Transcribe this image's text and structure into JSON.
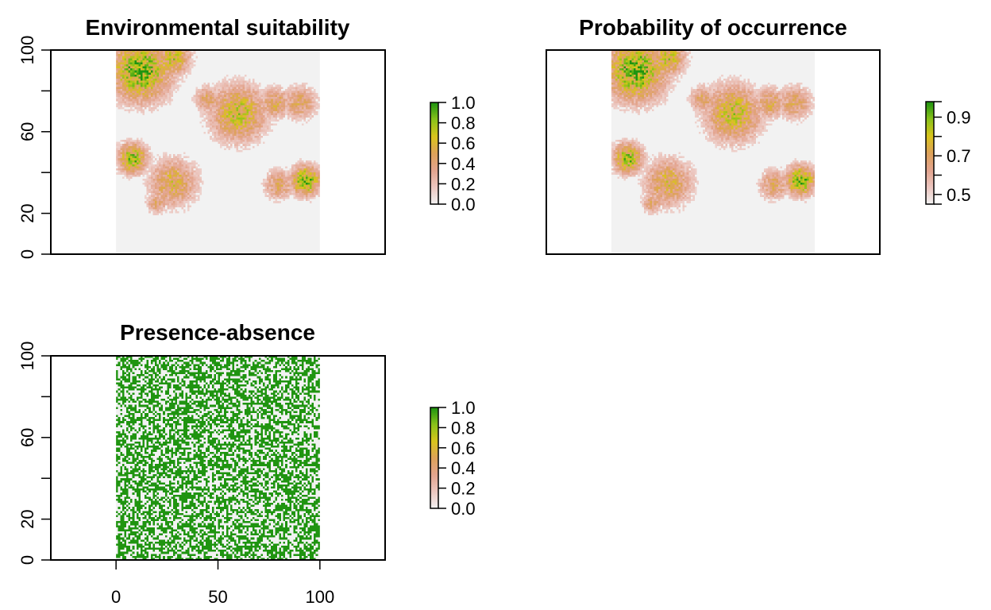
{
  "chart_data": [
    {
      "type": "heatmap",
      "title": "Environmental suitability",
      "xlim": [
        -32,
        132
      ],
      "ylim": [
        0,
        100
      ],
      "extent": {
        "x": [
          0,
          100
        ],
        "y": [
          0,
          100
        ]
      },
      "yticks": [
        0,
        20,
        60,
        100
      ],
      "ytick_labels": [
        "0",
        "20",
        "60",
        "100"
      ],
      "yminor_ticks": [
        40,
        80
      ],
      "xticks": [],
      "palette": [
        "#f2f2f2",
        "#ecc7c0",
        "#e3a48f",
        "#dea25a",
        "#d9c41c",
        "#8ac21a",
        "#1f9410"
      ],
      "legend": {
        "ticks": [
          0.0,
          0.2,
          0.4,
          0.6,
          0.8,
          1.0
        ],
        "labels": [
          "0.0",
          "0.2",
          "0.4",
          "0.6",
          "0.8",
          "1.0"
        ],
        "range": [
          0,
          1
        ]
      },
      "hotspots": [
        {
          "x": 12,
          "y": 90,
          "r": 14,
          "v": 0.95
        },
        {
          "x": 28,
          "y": 96,
          "r": 8,
          "v": 0.7
        },
        {
          "x": 45,
          "y": 76,
          "r": 6,
          "v": 0.5
        },
        {
          "x": 60,
          "y": 69,
          "r": 13,
          "v": 0.72
        },
        {
          "x": 78,
          "y": 74,
          "r": 7,
          "v": 0.55
        },
        {
          "x": 90,
          "y": 74,
          "r": 8,
          "v": 0.5
        },
        {
          "x": 8,
          "y": 47,
          "r": 7,
          "v": 0.85
        },
        {
          "x": 28,
          "y": 35,
          "r": 11,
          "v": 0.6
        },
        {
          "x": 20,
          "y": 25,
          "r": 5,
          "v": 0.45
        },
        {
          "x": 93,
          "y": 36,
          "r": 7,
          "v": 0.92
        },
        {
          "x": 80,
          "y": 34,
          "r": 7,
          "v": 0.5
        }
      ]
    },
    {
      "type": "heatmap",
      "title": "Probability of occurrence",
      "xlim": [
        -32,
        132
      ],
      "ylim": [
        0,
        100
      ],
      "extent": {
        "x": [
          0,
          100
        ],
        "y": [
          0,
          100
        ]
      },
      "xticks": [],
      "yticks": [],
      "legend": {
        "ticks": [
          0.45,
          0.5,
          0.6,
          0.7,
          0.8,
          0.9,
          0.98
        ],
        "labels": [
          "0.5",
          "0.7",
          "0.9"
        ],
        "label_values": [
          0.5,
          0.7,
          0.9
        ],
        "range": [
          0.45,
          0.98
        ]
      }
    },
    {
      "type": "heatmap",
      "title": "Presence-absence",
      "xlim": [
        -32,
        132
      ],
      "ylim": [
        0,
        100
      ],
      "extent": {
        "x": [
          0,
          100
        ],
        "y": [
          0,
          100
        ]
      },
      "yticks": [
        0,
        20,
        60,
        100
      ],
      "ytick_labels": [
        "0",
        "20",
        "60",
        "100"
      ],
      "yminor_ticks": [
        40,
        80
      ],
      "xticks": [
        0,
        50,
        100
      ],
      "xtick_labels": [
        "0",
        "50",
        "100"
      ],
      "xminor_ticks": [],
      "presence_fraction": 0.55,
      "legend": {
        "ticks": [
          0.0,
          0.2,
          0.4,
          0.6,
          0.8,
          1.0
        ],
        "labels": [
          "0.0",
          "0.2",
          "0.4",
          "0.6",
          "0.8",
          "1.0"
        ],
        "range": [
          0,
          1
        ]
      }
    }
  ]
}
